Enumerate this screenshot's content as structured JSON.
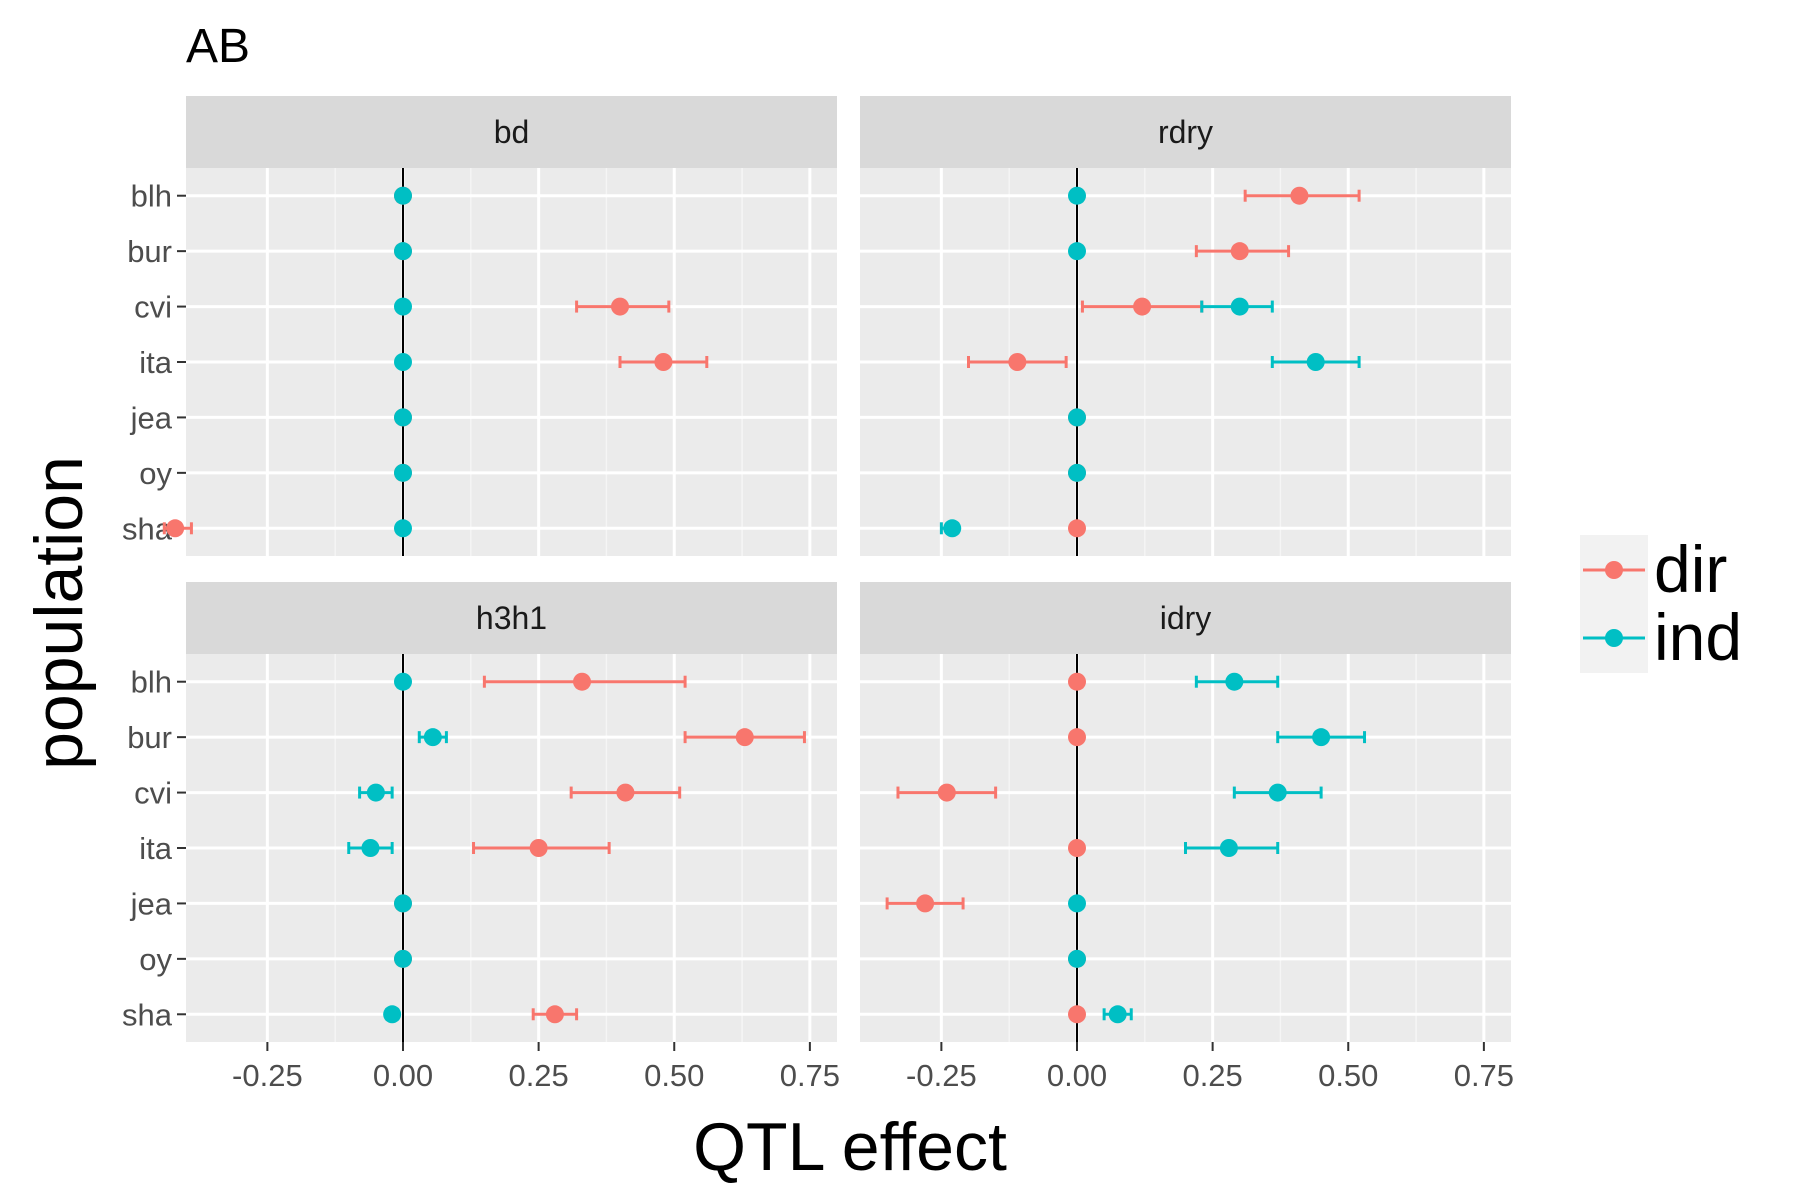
{
  "title": "AB",
  "xlabel": "QTL effect",
  "ylabel": "population",
  "chart_data": {
    "type": "scatter",
    "subtype": "dot-with-horizontal-error-bars",
    "facet_layout": "2x2",
    "x_range": [
      -0.4,
      0.8
    ],
    "x_ticks": [
      -0.25,
      0.0,
      0.25,
      0.5,
      0.75
    ],
    "x_tick_labels": [
      "-0.25",
      "0.00",
      "0.25",
      "0.50",
      "0.75"
    ],
    "categories": [
      "blh",
      "bur",
      "cvi",
      "ita",
      "jea",
      "oy",
      "sha"
    ],
    "reference_line_x": 0,
    "grid": true,
    "legend": {
      "position": "right",
      "entries": [
        {
          "name": "dir",
          "color": "#F8766D"
        },
        {
          "name": "ind",
          "color": "#00BFC4"
        }
      ]
    },
    "panels": [
      {
        "name": "bd",
        "series": [
          {
            "name": "dir",
            "points": [
              {
                "pop": "blh",
                "x": 0.0,
                "lo": 0.0,
                "hi": 0.0
              },
              {
                "pop": "bur",
                "x": 0.0,
                "lo": 0.0,
                "hi": 0.0
              },
              {
                "pop": "cvi",
                "x": 0.4,
                "lo": 0.32,
                "hi": 0.49
              },
              {
                "pop": "ita",
                "x": 0.48,
                "lo": 0.4,
                "hi": 0.56
              },
              {
                "pop": "jea",
                "x": 0.0,
                "lo": 0.0,
                "hi": 0.0
              },
              {
                "pop": "oy",
                "x": 0.0,
                "lo": 0.0,
                "hi": 0.0
              },
              {
                "pop": "sha",
                "x": -0.42,
                "lo": -0.44,
                "hi": -0.39
              }
            ]
          },
          {
            "name": "ind",
            "points": [
              {
                "pop": "blh",
                "x": 0.0,
                "lo": 0.0,
                "hi": 0.0
              },
              {
                "pop": "bur",
                "x": 0.0,
                "lo": 0.0,
                "hi": 0.0
              },
              {
                "pop": "cvi",
                "x": 0.0,
                "lo": 0.0,
                "hi": 0.0
              },
              {
                "pop": "ita",
                "x": 0.0,
                "lo": 0.0,
                "hi": 0.0
              },
              {
                "pop": "jea",
                "x": 0.0,
                "lo": 0.0,
                "hi": 0.0
              },
              {
                "pop": "oy",
                "x": 0.0,
                "lo": 0.0,
                "hi": 0.0
              },
              {
                "pop": "sha",
                "x": 0.0,
                "lo": 0.0,
                "hi": 0.0
              }
            ]
          }
        ]
      },
      {
        "name": "rdry",
        "series": [
          {
            "name": "dir",
            "points": [
              {
                "pop": "blh",
                "x": 0.41,
                "lo": 0.31,
                "hi": 0.52
              },
              {
                "pop": "bur",
                "x": 0.3,
                "lo": 0.22,
                "hi": 0.39
              },
              {
                "pop": "cvi",
                "x": 0.12,
                "lo": 0.01,
                "hi": 0.23
              },
              {
                "pop": "ita",
                "x": -0.11,
                "lo": -0.2,
                "hi": -0.02
              },
              {
                "pop": "jea",
                "x": 0.0,
                "lo": 0.0,
                "hi": 0.0
              },
              {
                "pop": "oy",
                "x": 0.0,
                "lo": 0.0,
                "hi": 0.0
              },
              {
                "pop": "sha",
                "x": 0.0,
                "lo": 0.0,
                "hi": 0.0
              }
            ]
          },
          {
            "name": "ind",
            "points": [
              {
                "pop": "blh",
                "x": 0.0,
                "lo": 0.0,
                "hi": 0.0
              },
              {
                "pop": "bur",
                "x": 0.0,
                "lo": 0.0,
                "hi": 0.0
              },
              {
                "pop": "cvi",
                "x": 0.3,
                "lo": 0.23,
                "hi": 0.36
              },
              {
                "pop": "ita",
                "x": 0.44,
                "lo": 0.36,
                "hi": 0.52
              },
              {
                "pop": "jea",
                "x": 0.0,
                "lo": 0.0,
                "hi": 0.0
              },
              {
                "pop": "oy",
                "x": 0.0,
                "lo": 0.0,
                "hi": 0.0
              },
              {
                "pop": "sha",
                "x": -0.23,
                "lo": -0.25,
                "hi": -0.22
              }
            ]
          }
        ]
      },
      {
        "name": "h3h1",
        "series": [
          {
            "name": "dir",
            "points": [
              {
                "pop": "blh",
                "x": 0.33,
                "lo": 0.15,
                "hi": 0.52
              },
              {
                "pop": "bur",
                "x": 0.63,
                "lo": 0.52,
                "hi": 0.74
              },
              {
                "pop": "cvi",
                "x": 0.41,
                "lo": 0.31,
                "hi": 0.51
              },
              {
                "pop": "ita",
                "x": 0.25,
                "lo": 0.13,
                "hi": 0.38
              },
              {
                "pop": "jea",
                "x": 0.0,
                "lo": 0.0,
                "hi": 0.0
              },
              {
                "pop": "oy",
                "x": 0.0,
                "lo": 0.0,
                "hi": 0.0
              },
              {
                "pop": "sha",
                "x": 0.28,
                "lo": 0.24,
                "hi": 0.32
              }
            ]
          },
          {
            "name": "ind",
            "points": [
              {
                "pop": "blh",
                "x": 0.0,
                "lo": 0.0,
                "hi": 0.0
              },
              {
                "pop": "bur",
                "x": 0.055,
                "lo": 0.03,
                "hi": 0.08
              },
              {
                "pop": "cvi",
                "x": -0.05,
                "lo": -0.08,
                "hi": -0.02
              },
              {
                "pop": "ita",
                "x": -0.06,
                "lo": -0.1,
                "hi": -0.02
              },
              {
                "pop": "jea",
                "x": 0.0,
                "lo": 0.0,
                "hi": 0.0
              },
              {
                "pop": "oy",
                "x": 0.0,
                "lo": 0.0,
                "hi": 0.0
              },
              {
                "pop": "sha",
                "x": -0.02,
                "lo": -0.03,
                "hi": -0.01
              }
            ]
          }
        ]
      },
      {
        "name": "idry",
        "series": [
          {
            "name": "dir",
            "points": [
              {
                "pop": "blh",
                "x": 0.0,
                "lo": 0.0,
                "hi": 0.0
              },
              {
                "pop": "bur",
                "x": 0.0,
                "lo": 0.0,
                "hi": 0.0
              },
              {
                "pop": "cvi",
                "x": -0.24,
                "lo": -0.33,
                "hi": -0.15
              },
              {
                "pop": "ita",
                "x": 0.0,
                "lo": 0.0,
                "hi": 0.0
              },
              {
                "pop": "jea",
                "x": -0.28,
                "lo": -0.35,
                "hi": -0.21
              },
              {
                "pop": "oy",
                "x": 0.0,
                "lo": 0.0,
                "hi": 0.0
              },
              {
                "pop": "sha",
                "x": 0.0,
                "lo": 0.0,
                "hi": 0.0
              }
            ]
          },
          {
            "name": "ind",
            "points": [
              {
                "pop": "blh",
                "x": 0.29,
                "lo": 0.22,
                "hi": 0.37
              },
              {
                "pop": "bur",
                "x": 0.45,
                "lo": 0.37,
                "hi": 0.53
              },
              {
                "pop": "cvi",
                "x": 0.37,
                "lo": 0.29,
                "hi": 0.45
              },
              {
                "pop": "ita",
                "x": 0.28,
                "lo": 0.2,
                "hi": 0.37
              },
              {
                "pop": "jea",
                "x": 0.0,
                "lo": 0.0,
                "hi": 0.0
              },
              {
                "pop": "oy",
                "x": 0.0,
                "lo": 0.0,
                "hi": 0.0
              },
              {
                "pop": "sha",
                "x": 0.075,
                "lo": 0.05,
                "hi": 0.1
              }
            ]
          }
        ]
      }
    ]
  }
}
